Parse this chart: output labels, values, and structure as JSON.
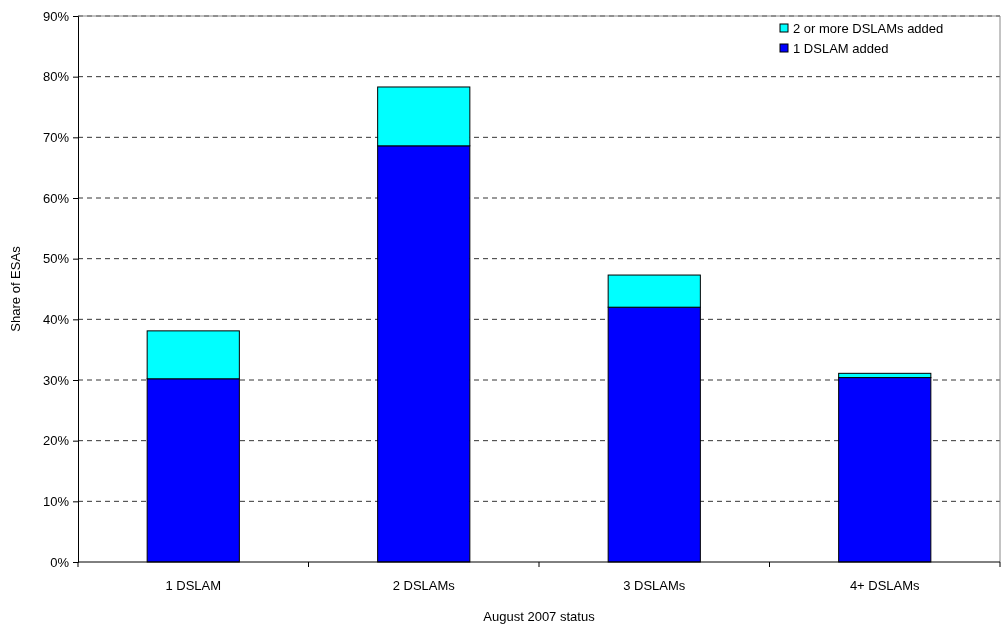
{
  "chart_data": {
    "type": "bar",
    "stacked": true,
    "xlabel": "August 2007 status",
    "ylabel": "Share of ESAs",
    "categories": [
      "1 DSLAM",
      "2 DSLAMs",
      "3 DSLAMs",
      "4+ DSLAMs"
    ],
    "series": [
      {
        "name": "1 DSLAM added",
        "color": "#0000ff",
        "values": [
          30.2,
          68.6,
          42.0,
          30.4
        ]
      },
      {
        "name": "2 or more DSLAMs added",
        "color": "#00ffff",
        "values": [
          7.9,
          9.7,
          5.3,
          0.7
        ]
      }
    ],
    "ylim": [
      0,
      90
    ],
    "yticks": [
      {
        "value": 0,
        "label": "0%"
      },
      {
        "value": 10,
        "label": "10%"
      },
      {
        "value": 20,
        "label": "20%"
      },
      {
        "value": 30,
        "label": "30%"
      },
      {
        "value": 40,
        "label": "40%"
      },
      {
        "value": 50,
        "label": "50%"
      },
      {
        "value": 60,
        "label": "60%"
      },
      {
        "value": 70,
        "label": "70%"
      },
      {
        "value": 80,
        "label": "80%"
      },
      {
        "value": 90,
        "label": "90%"
      }
    ],
    "grid": "y",
    "legend": "top right"
  }
}
